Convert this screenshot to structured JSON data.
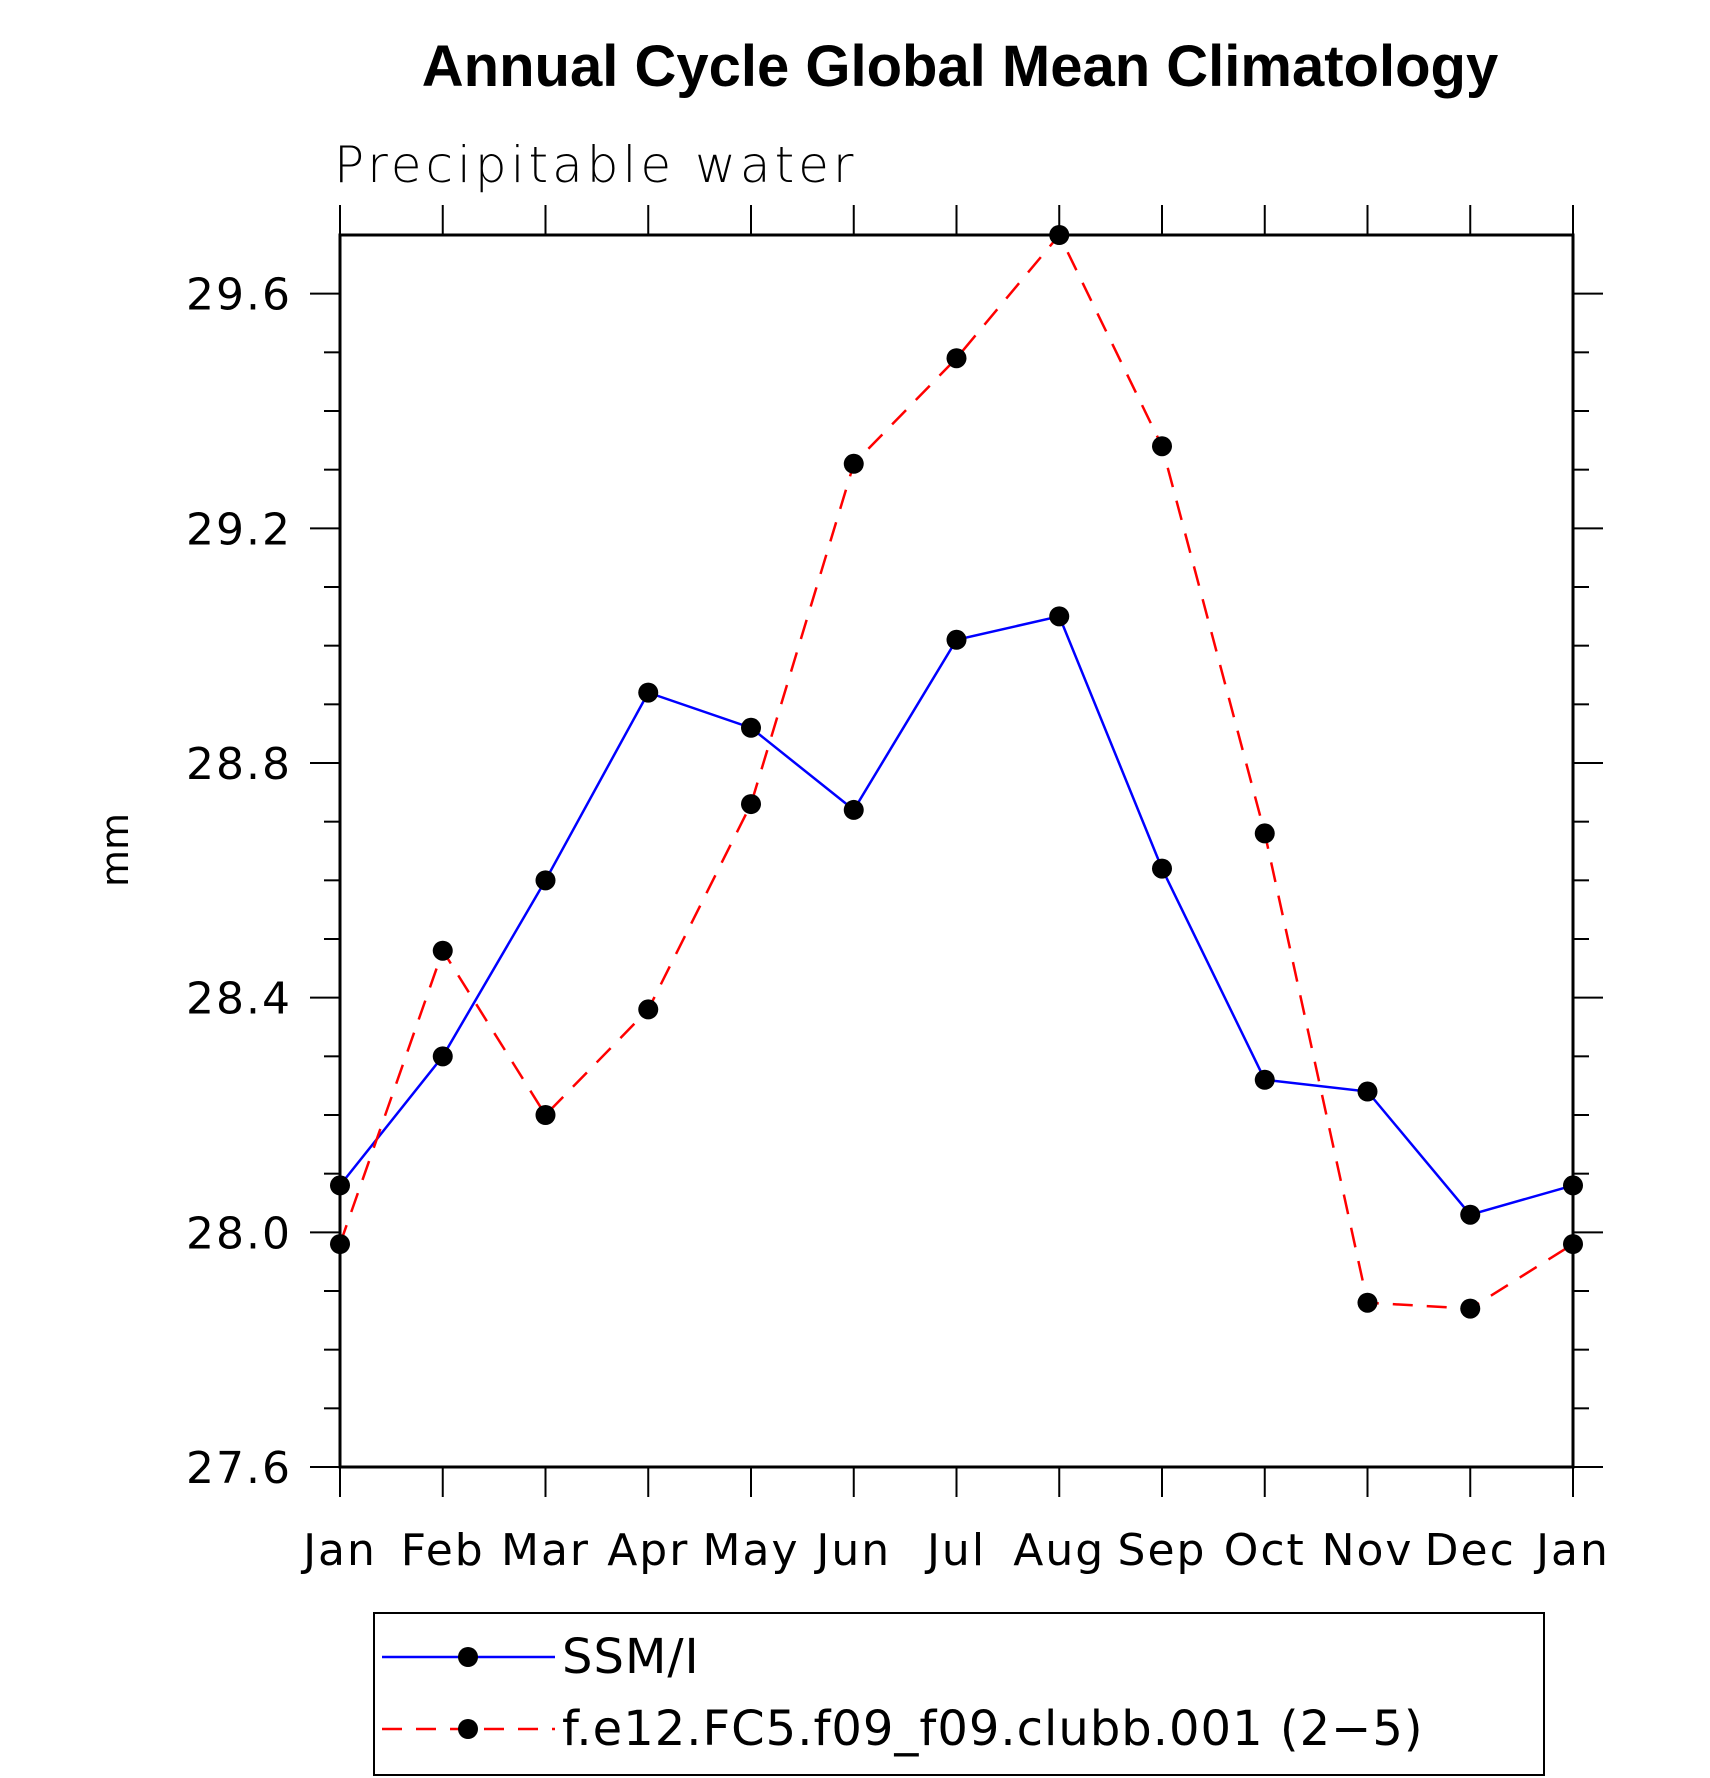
{
  "chart_data": {
    "type": "line",
    "title": "Annual Cycle Global Mean Climatology",
    "subtitle": "Precipitable water",
    "xlabel": "",
    "ylabel": "mm",
    "categories": [
      "Jan",
      "Feb",
      "Mar",
      "Apr",
      "May",
      "Jun",
      "Jul",
      "Aug",
      "Sep",
      "Oct",
      "Nov",
      "Dec",
      "Jan"
    ],
    "ylim": [
      27.6,
      29.7
    ],
    "yticks": [
      "27.6",
      "28.0",
      "28.4",
      "28.8",
      "29.2",
      "29.6"
    ],
    "legend_position": "bottom",
    "series": [
      {
        "name": "SSM/I",
        "color": "#0000ff",
        "line_style": "solid",
        "marker": "filled-circle",
        "values": [
          28.08,
          28.3,
          28.6,
          28.92,
          28.86,
          28.72,
          29.01,
          29.05,
          28.62,
          28.26,
          28.24,
          28.03,
          28.08
        ]
      },
      {
        "name": "f.e12.FC5.f09_f09.clubb.001 (2−5)",
        "color": "#ff0000",
        "line_style": "dashed",
        "marker": "filled-circle",
        "values": [
          27.98,
          28.48,
          28.2,
          28.38,
          28.73,
          29.31,
          29.49,
          29.7,
          29.34,
          28.68,
          27.88,
          27.87,
          27.98
        ]
      }
    ]
  }
}
